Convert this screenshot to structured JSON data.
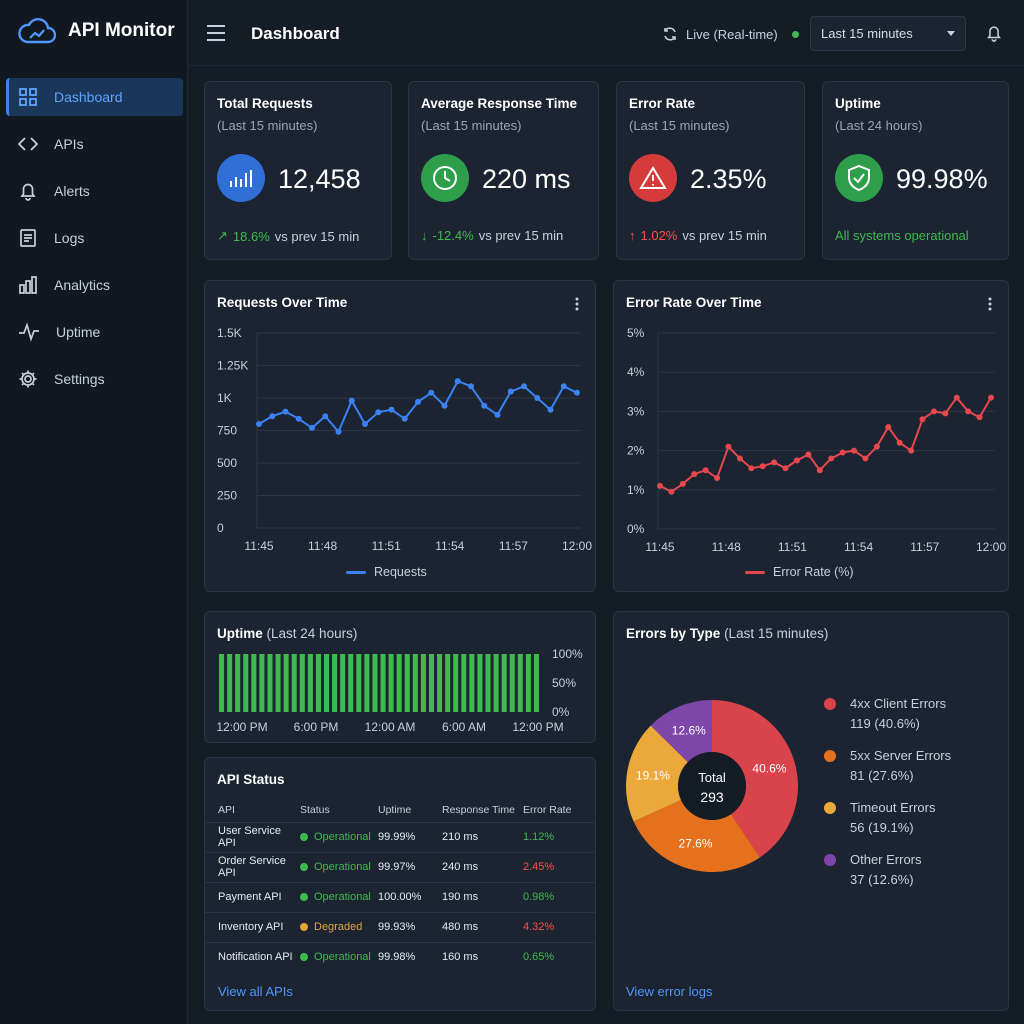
{
  "app": {
    "name": "API Monitor"
  },
  "header": {
    "title": "Dashboard",
    "live_label": "Live (Real-time)",
    "time_range": "Last 15 minutes"
  },
  "sidebar": {
    "items": [
      {
        "label": "Dashboard",
        "icon": "grid-icon",
        "active": true
      },
      {
        "label": "APIs",
        "icon": "code-icon"
      },
      {
        "label": "Alerts",
        "icon": "bell-icon"
      },
      {
        "label": "Logs",
        "icon": "document-icon"
      },
      {
        "label": "Analytics",
        "icon": "bar-chart-icon"
      },
      {
        "label": "Uptime",
        "icon": "pulse-icon"
      },
      {
        "label": "Settings",
        "icon": "gear-icon"
      }
    ]
  },
  "stats": [
    {
      "title": "Total Requests",
      "sub": "(Last 15 minutes)",
      "value": "12,458",
      "delta": "18.6%",
      "delta_arrow": "↗",
      "suffix": "vs prev 15 min",
      "color": "#2f6fd6"
    },
    {
      "title": "Average Response Time",
      "sub": "(Last 15 minutes)",
      "value": "220 ms",
      "delta": "-12.4%",
      "delta_arrow": "↓",
      "suffix": "vs prev 15 min",
      "color": "#2e9e4a"
    },
    {
      "title": "Error Rate",
      "sub": "(Last 15 minutes)",
      "value": "2.35%",
      "delta": "1.02%",
      "delta_arrow": "↑",
      "suffix": "vs prev 15 min",
      "color": "#d63b3b"
    },
    {
      "title": "Uptime",
      "sub": "(Last 24 hours)",
      "value": "99.98%",
      "note": "All systems operational",
      "color": "#2e9e4a"
    }
  ],
  "requests_chart": {
    "title": "Requests Over Time",
    "legend": "Requests",
    "y_ticks": [
      "0",
      "250",
      "500",
      "750",
      "1K",
      "1.25K",
      "1.5K"
    ],
    "x_ticks": [
      "11:45",
      "11:48",
      "11:51",
      "11:54",
      "11:57",
      "12:00"
    ]
  },
  "error_chart": {
    "title": "Error Rate Over Time",
    "legend": "Error Rate (%)",
    "y_ticks": [
      "0%",
      "1%",
      "2%",
      "3%",
      "4%",
      "5%"
    ],
    "x_ticks": [
      "11:45",
      "11:48",
      "11:51",
      "11:54",
      "11:57",
      "12:00"
    ]
  },
  "uptime_panel": {
    "title": "Uptime",
    "title_sub": "(Last 24 hours)",
    "x_ticks": [
      "12:00 PM",
      "6:00 PM",
      "12:00 AM",
      "6:00 AM",
      "12:00 PM"
    ],
    "y_ticks": [
      "100%",
      "50%",
      "0%"
    ]
  },
  "api_status": {
    "title": "API Status",
    "columns": [
      "API",
      "Status",
      "Uptime",
      "Response Time",
      "Error Rate"
    ],
    "rows": [
      {
        "api": "User Service API",
        "status": "Operational",
        "uptime": "99.99%",
        "response": "210 ms",
        "error": "1.12%"
      },
      {
        "api": "Order Service API",
        "status": "Operational",
        "uptime": "99.97%",
        "response": "240 ms",
        "error": "2.45%"
      },
      {
        "api": "Payment API",
        "status": "Operational",
        "uptime": "100.00%",
        "response": "190 ms",
        "error": "0.98%"
      },
      {
        "api": "Inventory API",
        "status": "Degraded",
        "uptime": "99.93%",
        "response": "480 ms",
        "error": "4.32%"
      },
      {
        "api": "Notification API",
        "status": "Operational",
        "uptime": "99.98%",
        "response": "160 ms",
        "error": "0.65%"
      }
    ],
    "link": "View all APIs"
  },
  "errors_by_type": {
    "title": "Errors by Type",
    "title_sub": "(Last 15 minutes)",
    "center_label": "Total",
    "center_value": "293",
    "link": "View error logs",
    "items": [
      {
        "name": "4xx Client Errors",
        "detail": "119 (40.6%)",
        "pct_label": "40.6%",
        "color": "#d9434b"
      },
      {
        "name": "5xx Server Errors",
        "detail": "81 (27.6%)",
        "pct_label": "27.6%",
        "color": "#e6711d"
      },
      {
        "name": "Timeout Errors",
        "detail": "56 (19.1%)",
        "pct_label": "19.1%",
        "color": "#eaa93a"
      },
      {
        "name": "Other Errors",
        "detail": "37 (12.6%)",
        "pct_label": "12.6%",
        "color": "#7e46a8"
      }
    ]
  },
  "chart_data": [
    {
      "type": "line",
      "title": "Requests Over Time",
      "ylim": [
        0,
        1500
      ],
      "x": [
        "11:45",
        "",
        "",
        "",
        "",
        "11:48",
        "",
        "",
        "",
        "",
        "11:51",
        "",
        "",
        "",
        "",
        "11:54",
        "",
        "",
        "",
        "",
        "11:57",
        "",
        "",
        "",
        "12:00"
      ],
      "series": [
        {
          "name": "Requests",
          "color": "#3b82f6",
          "values": [
            800,
            860,
            895,
            840,
            770,
            860,
            740,
            980,
            800,
            890,
            910,
            840,
            970,
            1040,
            940,
            1130,
            1090,
            940,
            870,
            1050,
            1090,
            1000,
            910,
            1090,
            1040
          ]
        }
      ]
    },
    {
      "type": "line",
      "title": "Error Rate Over Time",
      "ylim": [
        0,
        5
      ],
      "x": [
        "11:45",
        "",
        "",
        "",
        "",
        "",
        "11:48",
        "",
        "",
        "",
        "",
        "",
        "11:51",
        "",
        "",
        "",
        "",
        "",
        "11:54",
        "",
        "",
        "",
        "",
        "",
        "11:57",
        "",
        "",
        "",
        "",
        "12:00"
      ],
      "series": [
        {
          "name": "Error Rate (%)",
          "color": "#e5484d",
          "values": [
            1.1,
            0.95,
            1.15,
            1.4,
            1.5,
            1.3,
            2.1,
            1.8,
            1.55,
            1.6,
            1.7,
            1.55,
            1.75,
            1.9,
            1.5,
            1.8,
            1.95,
            2.0,
            1.8,
            2.1,
            2.6,
            2.2,
            2.0,
            2.8,
            3.0,
            2.95,
            3.35,
            3.0,
            2.85,
            3.35
          ]
        }
      ]
    },
    {
      "type": "bar",
      "title": "Uptime",
      "ylim": [
        0,
        100
      ],
      "values": [
        100,
        100,
        100,
        100,
        100,
        100,
        100,
        100,
        100,
        100,
        100,
        100,
        100,
        100,
        100,
        100,
        100,
        100,
        100,
        100,
        100,
        100,
        100,
        100,
        100,
        100,
        100,
        100,
        100,
        100,
        100,
        100,
        100,
        100,
        100,
        100,
        100,
        100,
        100,
        100
      ]
    },
    {
      "type": "pie",
      "title": "Errors by Type",
      "categories": [
        "4xx Client Errors",
        "5xx Server Errors",
        "Timeout Errors",
        "Other Errors"
      ],
      "values": [
        119,
        81,
        56,
        37
      ]
    }
  ]
}
